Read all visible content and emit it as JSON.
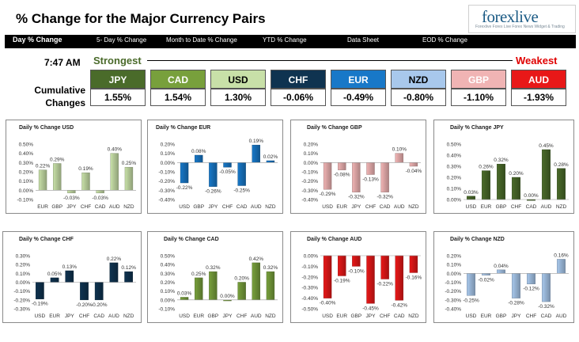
{
  "header": {
    "title": "% Change for the Major Currency Pairs",
    "logo_main": "forexlive",
    "logo_sub": "Forexlive Forex Live Forex News Widget & Trading"
  },
  "nav": {
    "items": [
      "Day % Change",
      "5- Day % Change",
      "Month to Date % Change",
      "YTD % Change",
      "Data Sheet",
      "EOD % Change"
    ]
  },
  "summary": {
    "time": "7:47 AM",
    "cumulative_label": "Cumulative Changes",
    "strongest_label": "Strongest",
    "weakest_label": "Weakest",
    "currencies": [
      {
        "code": "JPY",
        "value": "1.55%",
        "color": "#4a6b2a",
        "text_color": "#ffffff"
      },
      {
        "code": "CAD",
        "value": "1.54%",
        "color": "#78a03c",
        "text_color": "#ffffff"
      },
      {
        "code": "USD",
        "value": "1.30%",
        "color": "#c8e0a8",
        "text_color": "#000000"
      },
      {
        "code": "CHF",
        "value": "-0.06%",
        "color": "#0f3350",
        "text_color": "#ffffff"
      },
      {
        "code": "EUR",
        "value": "-0.49%",
        "color": "#1878c8",
        "text_color": "#ffffff"
      },
      {
        "code": "NZD",
        "value": "-0.80%",
        "color": "#a8c8ec",
        "text_color": "#000000"
      },
      {
        "code": "GBP",
        "value": "-1.10%",
        "color": "#f0b4b4",
        "text_color": "#ffffff"
      },
      {
        "code": "AUD",
        "value": "-1.93%",
        "color": "#e81818",
        "text_color": "#ffffff"
      }
    ]
  },
  "chart_data": [
    {
      "type": "bar",
      "title": "Daily % Change USD",
      "categories": [
        "EUR",
        "GBP",
        "JPY",
        "CHF",
        "CAD",
        "AUD",
        "NZD"
      ],
      "values": [
        0.22,
        0.29,
        -0.03,
        0.19,
        -0.03,
        0.4,
        0.25
      ],
      "value_labels": [
        "0.22%",
        "0.29%",
        "-0.03%",
        "0.19%",
        "-0.03%",
        "0.40%",
        "0.25%"
      ],
      "ylim": [
        -0.1,
        0.5
      ],
      "ticks": [
        -0.1,
        0.0,
        0.1,
        0.2,
        0.3,
        0.4,
        0.5
      ],
      "tick_labels": [
        "-0.10%",
        "0.00%",
        "0.10%",
        "0.20%",
        "0.30%",
        "0.40%",
        "0.50%"
      ],
      "color": "#c8e0a8",
      "grid": false
    },
    {
      "type": "bar",
      "title": "Daily % Change EUR",
      "categories": [
        "USD",
        "GBP",
        "JPY",
        "CHF",
        "CAD",
        "AUD",
        "NZD"
      ],
      "values": [
        -0.22,
        0.08,
        -0.26,
        -0.05,
        -0.25,
        0.19,
        0.02
      ],
      "value_labels": [
        "-0.22%",
        "0.08%",
        "-0.26%",
        "-0.05%",
        "-0.25%",
        "0.19%",
        "0.02%"
      ],
      "ylim": [
        -0.4,
        0.2
      ],
      "ticks": [
        -0.4,
        -0.3,
        -0.2,
        -0.1,
        0.0,
        0.1,
        0.2
      ],
      "tick_labels": [
        "-0.40%",
        "-0.30%",
        "-0.20%",
        "-0.10%",
        "0.00%",
        "0.10%",
        "0.20%"
      ],
      "color": "#1878c8",
      "grid": false
    },
    {
      "type": "bar",
      "title": "Daily % Change GBP",
      "categories": [
        "USD",
        "EUR",
        "JPY",
        "CHF",
        "CAD",
        "AUD",
        "NZD"
      ],
      "values": [
        -0.29,
        -0.08,
        -0.32,
        -0.13,
        -0.32,
        0.1,
        -0.04
      ],
      "value_labels": [
        "-0.29%",
        "-0.08%",
        "-0.32%",
        "-0.13%",
        "-0.32%",
        "0.10%",
        "-0.04%"
      ],
      "ylim": [
        -0.4,
        0.2
      ],
      "ticks": [
        -0.4,
        -0.3,
        -0.2,
        -0.1,
        0.0,
        0.1,
        0.2
      ],
      "tick_labels": [
        "-0.40%",
        "-0.30%",
        "-0.20%",
        "-0.10%",
        "0.00%",
        "0.10%",
        "0.20%"
      ],
      "color": "#f0b4b4",
      "grid": false
    },
    {
      "type": "bar",
      "title": "Daily % Change JPY",
      "categories": [
        "USD",
        "EUR",
        "GBP",
        "CHF",
        "CAD",
        "AUD",
        "NZD"
      ],
      "values": [
        0.03,
        0.26,
        0.32,
        0.2,
        0.0,
        0.45,
        0.28
      ],
      "value_labels": [
        "0.03%",
        "0.26%",
        "0.32%",
        "0.20%",
        "0.00%",
        "0.45%",
        "0.28%"
      ],
      "ylim": [
        0.0,
        0.5
      ],
      "ticks": [
        0.0,
        0.1,
        0.2,
        0.3,
        0.4,
        0.5
      ],
      "tick_labels": [
        "0.00%",
        "0.10%",
        "0.20%",
        "0.30%",
        "0.40%",
        "0.50%"
      ],
      "color": "#4a6b2a",
      "grid": false
    },
    {
      "type": "bar",
      "title": "Daily % Change CHF",
      "categories": [
        "USD",
        "EUR",
        "JPY",
        "CHF",
        "CAD",
        "AUD",
        "NZD"
      ],
      "values": [
        -0.19,
        0.05,
        0.13,
        -0.2,
        -0.2,
        0.22,
        0.12
      ],
      "value_labels": [
        "-0.19%",
        "0.05%",
        "0.13%",
        "-0.20%",
        "-0.20%",
        "0.22%",
        "0.12%"
      ],
      "ylim": [
        -0.3,
        0.3
      ],
      "ticks": [
        -0.3,
        -0.2,
        -0.1,
        0.0,
        0.1,
        0.2,
        0.3
      ],
      "tick_labels": [
        "-0.30%",
        "-0.20%",
        "-0.10%",
        "0.00%",
        "0.10%",
        "0.20%",
        "0.30%"
      ],
      "color": "#0f3350",
      "grid": false
    },
    {
      "type": "bar",
      "title": "Daily % Change CAD",
      "categories": [
        "USD",
        "EUR",
        "GBP",
        "JPY",
        "CHF",
        "AUD",
        "NZD"
      ],
      "values": [
        0.03,
        0.25,
        0.32,
        0.0,
        0.2,
        0.42,
        0.32
      ],
      "value_labels": [
        "0.03%",
        "0.25%",
        "0.32%",
        "0.00%",
        "0.20%",
        "0.42%",
        "0.32%"
      ],
      "ylim": [
        -0.1,
        0.5
      ],
      "ticks": [
        -0.1,
        0.0,
        0.1,
        0.2,
        0.3,
        0.4,
        0.5
      ],
      "tick_labels": [
        "-0.10%",
        "0.00%",
        "0.10%",
        "0.20%",
        "0.30%",
        "0.40%",
        "0.50%"
      ],
      "color": "#78a03c",
      "grid": false
    },
    {
      "type": "bar",
      "title": "Daily % Change AUD",
      "categories": [
        "USD",
        "EUR",
        "GBP",
        "JPY",
        "CHF",
        "CAD",
        "NZD"
      ],
      "values": [
        -0.4,
        -0.19,
        -0.1,
        -0.45,
        -0.22,
        -0.42,
        -0.16
      ],
      "value_labels": [
        "-0.40%",
        "-0.19%",
        "-0.10%",
        "-0.45%",
        "-0.22%",
        "-0.42%",
        "-0.16%"
      ],
      "ylim": [
        -0.5,
        0.0
      ],
      "ticks": [
        -0.5,
        -0.4,
        -0.3,
        -0.2,
        -0.1,
        0.0
      ],
      "tick_labels": [
        "-0.50%",
        "-0.40%",
        "-0.30%",
        "-0.20%",
        "-0.10%",
        "0.00%"
      ],
      "color": "#e81818",
      "grid": false
    },
    {
      "type": "bar",
      "title": "Daily % Change NZD",
      "categories": [
        "USD",
        "EUR",
        "GBP",
        "JPY",
        "CHF",
        "CAD",
        "AUD"
      ],
      "values": [
        -0.25,
        -0.02,
        0.04,
        -0.28,
        -0.12,
        -0.32,
        0.16
      ],
      "value_labels": [
        "-0.25%",
        "-0.02%",
        "0.04%",
        "-0.28%",
        "-0.12%",
        "-0.32%",
        "0.16%"
      ],
      "ylim": [
        -0.4,
        0.2
      ],
      "ticks": [
        -0.4,
        -0.3,
        -0.2,
        -0.1,
        0.0,
        0.1,
        0.2
      ],
      "tick_labels": [
        "-0.40%",
        "-0.30%",
        "-0.20%",
        "-0.10%",
        "0.00%",
        "0.10%",
        "0.20%"
      ],
      "color": "#a8c8ec",
      "grid": false
    }
  ]
}
